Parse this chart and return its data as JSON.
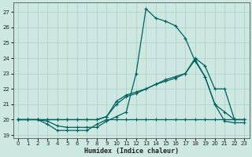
{
  "xlabel": "Humidex (Indice chaleur)",
  "background_color": "#cce8e0",
  "grid_color": "#aacfc8",
  "line_color": "#006060",
  "xlim": [
    -0.5,
    23.5
  ],
  "ylim": [
    18.8,
    27.6
  ],
  "yticks": [
    19,
    20,
    21,
    22,
    23,
    24,
    25,
    26,
    27
  ],
  "xticks": [
    0,
    1,
    2,
    3,
    4,
    5,
    6,
    7,
    8,
    9,
    10,
    11,
    12,
    13,
    14,
    15,
    16,
    17,
    18,
    19,
    20,
    21,
    22,
    23
  ],
  "line1_x": [
    0,
    1,
    2,
    3,
    4,
    5,
    6,
    7,
    8,
    9,
    10,
    11,
    12,
    13,
    14,
    15,
    16,
    17,
    18,
    19,
    20,
    21,
    22,
    23
  ],
  "line1_y": [
    20.0,
    20.0,
    20.0,
    19.9,
    19.6,
    19.5,
    19.5,
    19.5,
    19.5,
    19.9,
    20.2,
    20.5,
    23.0,
    27.2,
    26.6,
    26.4,
    26.1,
    25.3,
    23.8,
    22.8,
    21.0,
    19.9,
    19.8,
    19.8
  ],
  "line2_x": [
    0,
    1,
    2,
    3,
    4,
    5,
    6,
    7,
    8,
    9,
    10,
    11,
    12,
    13,
    14,
    15,
    16,
    17,
    18,
    19,
    20,
    21,
    22,
    23
  ],
  "line2_y": [
    20.0,
    20.0,
    20.0,
    20.0,
    20.0,
    20.0,
    20.0,
    20.0,
    20.0,
    20.2,
    21.2,
    21.6,
    21.8,
    22.0,
    22.3,
    22.5,
    22.7,
    23.0,
    23.9,
    22.8,
    21.0,
    20.5,
    20.0,
    20.0
  ],
  "line3_x": [
    0,
    1,
    2,
    3,
    4,
    5,
    6,
    7,
    8,
    9,
    10,
    11,
    12,
    13,
    14,
    15,
    16,
    17,
    18,
    19,
    20,
    21,
    22,
    23
  ],
  "line3_y": [
    20.0,
    20.0,
    20.0,
    20.0,
    20.0,
    20.0,
    20.0,
    20.0,
    20.0,
    20.2,
    21.0,
    21.5,
    21.7,
    22.0,
    22.3,
    22.6,
    22.8,
    23.0,
    24.0,
    23.5,
    22.0,
    22.0,
    20.0,
    20.0
  ],
  "line4_x": [
    0,
    1,
    2,
    3,
    4,
    5,
    6,
    7,
    8,
    9,
    10,
    11,
    12,
    13,
    14,
    15,
    16,
    17,
    18,
    19,
    20,
    21,
    22,
    23
  ],
  "line4_y": [
    20.0,
    20.0,
    20.0,
    19.7,
    19.3,
    19.3,
    19.3,
    19.3,
    19.7,
    20.0,
    20.0,
    20.0,
    20.0,
    20.0,
    20.0,
    20.0,
    20.0,
    20.0,
    20.0,
    20.0,
    20.0,
    20.0,
    20.0,
    20.0
  ]
}
